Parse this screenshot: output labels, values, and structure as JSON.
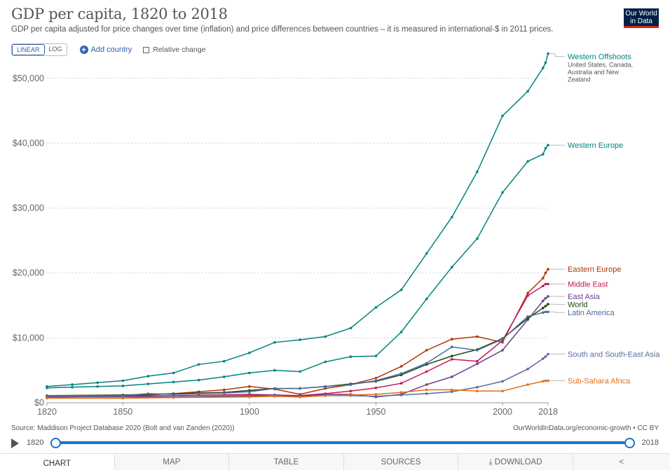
{
  "header": {
    "title": "GDP per capita, 1820 to 2018",
    "subtitle": "GDP per capita adjusted for price changes over time (inflation) and price differences between countries – it is measured in international-$ in 2011 prices.",
    "logo_line1": "Our World",
    "logo_line2": "in Data"
  },
  "controls": {
    "linear_label": "LINEAR",
    "log_label": "LOG",
    "add_country_label": "Add country",
    "relative_change_label": "Relative change"
  },
  "footer": {
    "source": "Source: Maddison Project Database 2020 (Bolt and van Zanden (2020))",
    "license": "OurWorldInData.org/economic-growth • CC BY"
  },
  "timeline": {
    "start": "1820",
    "end": "2018"
  },
  "tabs": [
    "CHART",
    "MAP",
    "TABLE",
    "SOURCES",
    "DOWNLOAD"
  ],
  "icons": {
    "download": "download-icon",
    "share": "share-icon",
    "play": "play-icon"
  },
  "chart_data": {
    "type": "line",
    "xlim": [
      1820,
      2018
    ],
    "ylim": [
      0,
      53000
    ],
    "x_ticks": [
      1820,
      1850,
      1900,
      1950,
      2000,
      2018
    ],
    "y_ticks": [
      0,
      10000,
      20000,
      30000,
      40000,
      50000
    ],
    "y_tick_labels": [
      "$0",
      "$10,000",
      "$20,000",
      "$30,000",
      "$40,000",
      "$50,000"
    ],
    "grid": "horizontal",
    "legend": "right",
    "series": [
      {
        "name": "Western Offshoots",
        "note": [
          "United States, Canada,",
          "Australia and New",
          "Zealand"
        ],
        "color": "#00847e",
        "points": [
          [
            1820,
            2500
          ],
          [
            1830,
            2800
          ],
          [
            1840,
            3100
          ],
          [
            1850,
            3400
          ],
          [
            1860,
            4100
          ],
          [
            1870,
            4600
          ],
          [
            1880,
            5900
          ],
          [
            1890,
            6400
          ],
          [
            1900,
            7700
          ],
          [
            1910,
            9300
          ],
          [
            1920,
            9700
          ],
          [
            1930,
            10200
          ],
          [
            1940,
            11500
          ],
          [
            1950,
            14700
          ],
          [
            1960,
            17400
          ],
          [
            1970,
            23000
          ],
          [
            1980,
            28600
          ],
          [
            1990,
            35600
          ],
          [
            2000,
            44200
          ],
          [
            2010,
            48000
          ],
          [
            2016,
            51600
          ],
          [
            2017,
            52400
          ],
          [
            2018,
            53800
          ]
        ]
      },
      {
        "name": "Western Europe",
        "color": "#00847e",
        "points": [
          [
            1820,
            2300
          ],
          [
            1830,
            2400
          ],
          [
            1840,
            2500
          ],
          [
            1850,
            2600
          ],
          [
            1860,
            2900
          ],
          [
            1870,
            3200
          ],
          [
            1880,
            3500
          ],
          [
            1890,
            4000
          ],
          [
            1900,
            4600
          ],
          [
            1910,
            5000
          ],
          [
            1920,
            4800
          ],
          [
            1930,
            6300
          ],
          [
            1940,
            7100
          ],
          [
            1950,
            7200
          ],
          [
            1960,
            10900
          ],
          [
            1970,
            16000
          ],
          [
            1980,
            20900
          ],
          [
            1990,
            25300
          ],
          [
            2000,
            32400
          ],
          [
            2010,
            37200
          ],
          [
            2016,
            38300
          ],
          [
            2017,
            39200
          ],
          [
            2018,
            39700
          ]
        ]
      },
      {
        "name": "Eastern Europe",
        "color": "#b13507",
        "points": [
          [
            1820,
            800
          ],
          [
            1850,
            1000
          ],
          [
            1860,
            1200
          ],
          [
            1870,
            1400
          ],
          [
            1880,
            1700
          ],
          [
            1890,
            2000
          ],
          [
            1900,
            2500
          ],
          [
            1910,
            2100
          ],
          [
            1920,
            1300
          ],
          [
            1930,
            2200
          ],
          [
            1940,
            2800
          ],
          [
            1950,
            3800
          ],
          [
            1960,
            5600
          ],
          [
            1970,
            8100
          ],
          [
            1980,
            9800
          ],
          [
            1990,
            10200
          ],
          [
            2000,
            9300
          ],
          [
            2010,
            16900
          ],
          [
            2016,
            19200
          ],
          [
            2017,
            20000
          ],
          [
            2018,
            20600
          ]
        ]
      },
      {
        "name": "Middle East",
        "color": "#c2185b",
        "points": [
          [
            1820,
            1000
          ],
          [
            1850,
            1000
          ],
          [
            1870,
            1100
          ],
          [
            1900,
            1300
          ],
          [
            1910,
            1200
          ],
          [
            1920,
            1100
          ],
          [
            1930,
            1400
          ],
          [
            1940,
            1800
          ],
          [
            1950,
            2300
          ],
          [
            1960,
            3000
          ],
          [
            1970,
            4800
          ],
          [
            1980,
            6700
          ],
          [
            1990,
            6400
          ],
          [
            2000,
            9600
          ],
          [
            2010,
            16500
          ],
          [
            2016,
            18000
          ],
          [
            2017,
            18300
          ],
          [
            2018,
            18300
          ]
        ]
      },
      {
        "name": "East Asia",
        "color": "#6d3e91",
        "points": [
          [
            1820,
            900
          ],
          [
            1850,
            900
          ],
          [
            1870,
            900
          ],
          [
            1900,
            1100
          ],
          [
            1910,
            1200
          ],
          [
            1920,
            1000
          ],
          [
            1930,
            1300
          ],
          [
            1940,
            1300
          ],
          [
            1950,
            900
          ],
          [
            1960,
            1300
          ],
          [
            1970,
            2800
          ],
          [
            1980,
            4000
          ],
          [
            1990,
            6000
          ],
          [
            2000,
            8100
          ],
          [
            2010,
            12800
          ],
          [
            2016,
            15700
          ],
          [
            2017,
            16100
          ],
          [
            2018,
            16400
          ]
        ]
      },
      {
        "name": "World",
        "color": "#18470f",
        "points": [
          [
            1820,
            1100
          ],
          [
            1850,
            1200
          ],
          [
            1870,
            1400
          ],
          [
            1880,
            1500
          ],
          [
            1890,
            1600
          ],
          [
            1900,
            1900
          ],
          [
            1910,
            2200
          ],
          [
            1920,
            2200
          ],
          [
            1930,
            2500
          ],
          [
            1940,
            2900
          ],
          [
            1950,
            3300
          ],
          [
            1960,
            4300
          ],
          [
            1970,
            5900
          ],
          [
            1980,
            7200
          ],
          [
            1990,
            8200
          ],
          [
            2000,
            9900
          ],
          [
            2010,
            13000
          ],
          [
            2016,
            14600
          ],
          [
            2017,
            14900
          ],
          [
            2018,
            15200
          ]
        ]
      },
      {
        "name": "Latin America",
        "color": "#4c6a9c",
        "points": [
          [
            1820,
            1100
          ],
          [
            1850,
            1100
          ],
          [
            1860,
            1400
          ],
          [
            1870,
            1300
          ],
          [
            1880,
            1400
          ],
          [
            1890,
            1500
          ],
          [
            1900,
            1700
          ],
          [
            1910,
            2200
          ],
          [
            1920,
            2200
          ],
          [
            1930,
            2500
          ],
          [
            1940,
            2800
          ],
          [
            1950,
            3400
          ],
          [
            1960,
            4500
          ],
          [
            1970,
            6100
          ],
          [
            1980,
            8600
          ],
          [
            1990,
            8100
          ],
          [
            2000,
            9800
          ],
          [
            2010,
            13300
          ],
          [
            2016,
            13900
          ],
          [
            2017,
            14000
          ],
          [
            2018,
            14000
          ]
        ]
      },
      {
        "name": "South and South-East Asia",
        "color": "#5b6a9c",
        "points": [
          [
            1820,
            900
          ],
          [
            1850,
            900
          ],
          [
            1870,
            900
          ],
          [
            1900,
            1000
          ],
          [
            1910,
            1000
          ],
          [
            1920,
            900
          ],
          [
            1930,
            1100
          ],
          [
            1940,
            1100
          ],
          [
            1950,
            1000
          ],
          [
            1960,
            1200
          ],
          [
            1970,
            1400
          ],
          [
            1980,
            1700
          ],
          [
            1990,
            2400
          ],
          [
            2000,
            3300
          ],
          [
            2010,
            5200
          ],
          [
            2016,
            6800
          ],
          [
            2017,
            7100
          ],
          [
            2018,
            7500
          ]
        ]
      },
      {
        "name": "Sub-Sahara Africa",
        "color": "#e56e15",
        "points": [
          [
            1820,
            700
          ],
          [
            1850,
            700
          ],
          [
            1870,
            800
          ],
          [
            1900,
            900
          ],
          [
            1910,
            1000
          ],
          [
            1920,
            900
          ],
          [
            1930,
            1100
          ],
          [
            1940,
            1200
          ],
          [
            1950,
            1300
          ],
          [
            1960,
            1600
          ],
          [
            1970,
            2000
          ],
          [
            1980,
            2000
          ],
          [
            1990,
            1800
          ],
          [
            2000,
            1800
          ],
          [
            2010,
            2800
          ],
          [
            2016,
            3300
          ],
          [
            2017,
            3400
          ],
          [
            2018,
            3400
          ]
        ]
      }
    ]
  }
}
